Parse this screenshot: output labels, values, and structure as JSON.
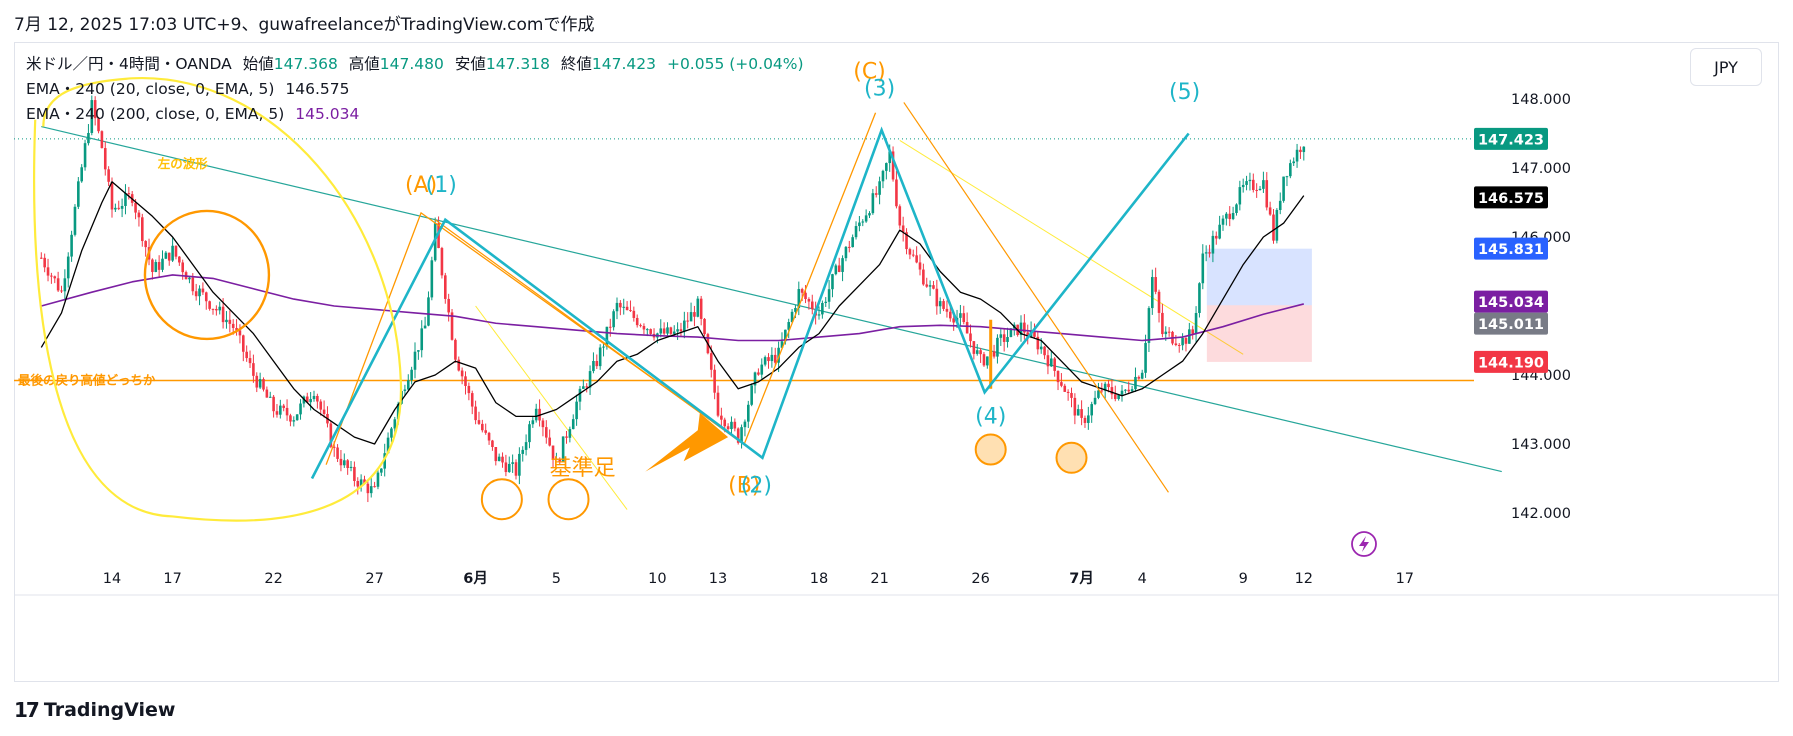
{
  "header": {
    "text": "7月 12, 2025 17:03 UTC+9、guwafreelanceがTradingView.comで作成"
  },
  "legend": {
    "symbol": "米ドル／円・4時間・OANDA",
    "open_label": "始値",
    "open": "147.368",
    "high_label": "高値",
    "high": "147.480",
    "low_label": "安値",
    "low": "147.318",
    "close_label": "終値",
    "close": "147.423",
    "change": "+0.055 (+0.04%)",
    "ema20_label": "EMA・240 (20, close, 0, EMA, 5)",
    "ema20_value": "146.575",
    "ema200_label": "EMA・240 (200, close, 0, EMA, 5)",
    "ema200_value": "145.034"
  },
  "currency_button": "JPY",
  "footer": {
    "logo": "TradingView",
    "logo_mark": "17"
  },
  "colors": {
    "up": "#089981",
    "down": "#f23645",
    "ema20": "#000000",
    "ema200": "#7b1fa2",
    "orange": "#ff9800",
    "cyan": "#1eb5c8",
    "yellow": "#ffeb3b",
    "teal": "#26a69a"
  },
  "chart_data": {
    "type": "candlestick",
    "y_range": [
      141.6,
      148.6
    ],
    "y_ticks": [
      {
        "value": 148,
        "label": "148.000"
      },
      {
        "value": 147,
        "label": "147.000"
      },
      {
        "value": 146,
        "label": "146.000"
      },
      {
        "value": 144,
        "label": "144.000"
      },
      {
        "value": 143,
        "label": "143.000"
      },
      {
        "value": 142,
        "label": "142.000"
      }
    ],
    "x_ticks": [
      {
        "day": 14,
        "label": "14"
      },
      {
        "day": 17,
        "label": "17"
      },
      {
        "day": 22,
        "label": "22"
      },
      {
        "day": 27,
        "label": "27"
      },
      {
        "day": 32,
        "label": "6月"
      },
      {
        "day": 36,
        "label": "5"
      },
      {
        "day": 41,
        "label": "10"
      },
      {
        "day": 44,
        "label": "13"
      },
      {
        "day": 49,
        "label": "18"
      },
      {
        "day": 52,
        "label": "21"
      },
      {
        "day": 57,
        "label": "26"
      },
      {
        "day": 62,
        "label": "7月"
      },
      {
        "day": 65,
        "label": "4"
      },
      {
        "day": 70,
        "label": "9"
      },
      {
        "day": 73,
        "label": "12"
      },
      {
        "day": 78,
        "label": "17"
      }
    ],
    "price_tags": [
      {
        "value": 147.423,
        "label": "147.423",
        "color": "#089981"
      },
      {
        "value": 146.575,
        "label": "146.575",
        "color": "#000000"
      },
      {
        "value": 145.831,
        "label": "145.831",
        "color": "#2962ff"
      },
      {
        "value": 145.034,
        "label": "145.034",
        "color": "#7b1fa2"
      },
      {
        "value": 145.011,
        "label": "145.011",
        "color": "#787b86"
      },
      {
        "value": 144.19,
        "label": "144.190",
        "color": "#f23645"
      }
    ],
    "last_price": 147.423,
    "horizontal_level": {
      "value": 143.92,
      "label": "最後の戻り高値どっちか"
    },
    "close_path": [
      [
        10.5,
        145.7
      ],
      [
        11.5,
        145.2
      ],
      [
        12.5,
        147.0
      ],
      [
        13,
        147.9
      ],
      [
        13.5,
        147.3
      ],
      [
        14,
        146.4
      ],
      [
        15,
        146.6
      ],
      [
        16,
        145.5
      ],
      [
        17,
        145.8
      ],
      [
        18,
        145.3
      ],
      [
        19,
        145.0
      ],
      [
        20,
        144.7
      ],
      [
        21,
        144.0
      ],
      [
        22,
        143.5
      ],
      [
        23,
        143.4
      ],
      [
        24,
        143.8
      ],
      [
        25,
        142.9
      ],
      [
        26,
        142.5
      ],
      [
        27,
        142.3
      ],
      [
        27.5,
        142.9
      ],
      [
        28.5,
        143.9
      ],
      [
        29.5,
        144.7
      ],
      [
        30,
        146.1
      ],
      [
        31,
        144.3
      ],
      [
        32,
        143.4
      ],
      [
        33,
        142.8
      ],
      [
        34,
        142.6
      ],
      [
        35,
        143.6
      ],
      [
        36,
        142.7
      ],
      [
        37,
        143.6
      ],
      [
        38,
        144.2
      ],
      [
        39,
        145.0
      ],
      [
        40,
        144.8
      ],
      [
        41,
        144.6
      ],
      [
        42,
        144.6
      ],
      [
        43,
        145.0
      ],
      [
        44,
        143.5
      ],
      [
        45,
        143.1
      ],
      [
        46,
        144.1
      ],
      [
        47,
        144.3
      ],
      [
        48,
        145.2
      ],
      [
        49,
        144.9
      ],
      [
        50,
        145.6
      ],
      [
        51,
        146.2
      ],
      [
        52,
        146.7
      ],
      [
        52.5,
        147.2
      ],
      [
        53,
        146.2
      ],
      [
        53.5,
        145.8
      ],
      [
        54,
        145.5
      ],
      [
        55,
        145.0
      ],
      [
        56,
        144.8
      ],
      [
        57,
        144.2
      ],
      [
        57.5,
        144.3
      ],
      [
        58,
        144.5
      ],
      [
        59,
        144.7
      ],
      [
        60,
        144.4
      ],
      [
        61,
        143.9
      ],
      [
        62,
        143.3
      ],
      [
        63,
        143.8
      ],
      [
        64,
        143.7
      ],
      [
        65,
        144.1
      ],
      [
        65.5,
        145.4
      ],
      [
        66,
        144.6
      ],
      [
        67,
        144.5
      ],
      [
        67.5,
        144.6
      ],
      [
        68,
        145.7
      ],
      [
        69,
        146.2
      ],
      [
        70,
        146.7
      ],
      [
        71,
        146.8
      ],
      [
        71.5,
        146.0
      ],
      [
        72,
        146.9
      ],
      [
        73,
        147.4
      ]
    ],
    "ema20_path": [
      [
        10.5,
        144.4
      ],
      [
        11.5,
        144.9
      ],
      [
        12.5,
        145.8
      ],
      [
        13.5,
        146.5
      ],
      [
        14,
        146.8
      ],
      [
        15,
        146.55
      ],
      [
        16,
        146.3
      ],
      [
        17,
        146.0
      ],
      [
        18,
        145.6
      ],
      [
        19,
        145.2
      ],
      [
        20,
        144.9
      ],
      [
        21,
        144.6
      ],
      [
        22,
        144.2
      ],
      [
        23,
        143.8
      ],
      [
        24,
        143.5
      ],
      [
        25,
        143.3
      ],
      [
        26,
        143.1
      ],
      [
        27,
        143.0
      ],
      [
        28,
        143.5
      ],
      [
        29,
        143.9
      ],
      [
        30,
        144.0
      ],
      [
        31,
        144.2
      ],
      [
        32,
        144.1
      ],
      [
        33,
        143.6
      ],
      [
        34,
        143.4
      ],
      [
        35,
        143.4
      ],
      [
        36,
        143.5
      ],
      [
        37,
        143.7
      ],
      [
        38,
        143.9
      ],
      [
        39,
        144.2
      ],
      [
        40,
        144.3
      ],
      [
        41,
        144.5
      ],
      [
        42,
        144.6
      ],
      [
        43,
        144.7
      ],
      [
        44,
        144.2
      ],
      [
        45,
        143.8
      ],
      [
        46,
        143.9
      ],
      [
        47,
        144.1
      ],
      [
        48,
        144.4
      ],
      [
        49,
        144.6
      ],
      [
        50,
        145.0
      ],
      [
        51,
        145.3
      ],
      [
        52,
        145.6
      ],
      [
        53,
        146.1
      ],
      [
        54,
        145.9
      ],
      [
        55,
        145.5
      ],
      [
        56,
        145.2
      ],
      [
        57,
        145.1
      ],
      [
        58,
        144.9
      ],
      [
        59,
        144.6
      ],
      [
        60,
        144.5
      ],
      [
        61,
        144.2
      ],
      [
        62,
        143.9
      ],
      [
        63,
        143.8
      ],
      [
        64,
        143.7
      ],
      [
        65,
        143.8
      ],
      [
        66,
        144.0
      ],
      [
        67,
        144.2
      ],
      [
        68,
        144.6
      ],
      [
        69,
        145.1
      ],
      [
        70,
        145.6
      ],
      [
        71,
        146.0
      ],
      [
        72,
        146.2
      ],
      [
        73,
        146.6
      ]
    ],
    "ema200_path": [
      [
        10.5,
        145.0
      ],
      [
        13,
        145.2
      ],
      [
        15,
        145.35
      ],
      [
        17,
        145.45
      ],
      [
        19,
        145.4
      ],
      [
        21,
        145.25
      ],
      [
        23,
        145.1
      ],
      [
        25,
        145.0
      ],
      [
        27,
        144.95
      ],
      [
        29,
        144.9
      ],
      [
        31,
        144.85
      ],
      [
        33,
        144.75
      ],
      [
        35,
        144.7
      ],
      [
        37,
        144.65
      ],
      [
        39,
        144.6
      ],
      [
        41,
        144.57
      ],
      [
        43,
        144.55
      ],
      [
        45,
        144.5
      ],
      [
        47,
        144.5
      ],
      [
        49,
        144.55
      ],
      [
        51,
        144.6
      ],
      [
        53,
        144.7
      ],
      [
        55,
        144.72
      ],
      [
        57,
        144.7
      ],
      [
        59,
        144.65
      ],
      [
        61,
        144.6
      ],
      [
        63,
        144.55
      ],
      [
        65,
        144.5
      ],
      [
        67,
        144.55
      ],
      [
        69,
        144.7
      ],
      [
        71,
        144.88
      ],
      [
        73,
        145.03
      ]
    ],
    "annotations": {
      "labels": [
        {
          "text": "(A)",
          "day": 29.3,
          "price": 146.65,
          "color": "#ff9800"
        },
        {
          "text": "(1)",
          "day": 30.3,
          "price": 146.65,
          "color": "#1eb5c8"
        },
        {
          "text": "(C)",
          "day": 51.5,
          "price": 148.3,
          "color": "#ff9800"
        },
        {
          "text": "(3)",
          "day": 52,
          "price": 148.05,
          "color": "#1eb5c8"
        },
        {
          "text": "(5)",
          "day": 67.1,
          "price": 148.0,
          "color": "#1eb5c8"
        },
        {
          "text": "(4)",
          "day": 57.5,
          "price": 143.3,
          "color": "#1eb5c8"
        },
        {
          "text": "(B)",
          "day": 45.3,
          "price": 142.3,
          "color": "#ff9800"
        },
        {
          "text": "(2)",
          "day": 45.9,
          "price": 142.3,
          "color": "#1eb5c8"
        },
        {
          "text": "左の波形",
          "day": 17.5,
          "price": 147.0,
          "color": "#ffc107"
        },
        {
          "text": "基準足",
          "day": 37.3,
          "price": 142.55,
          "color": "#ff9800"
        }
      ]
    }
  }
}
